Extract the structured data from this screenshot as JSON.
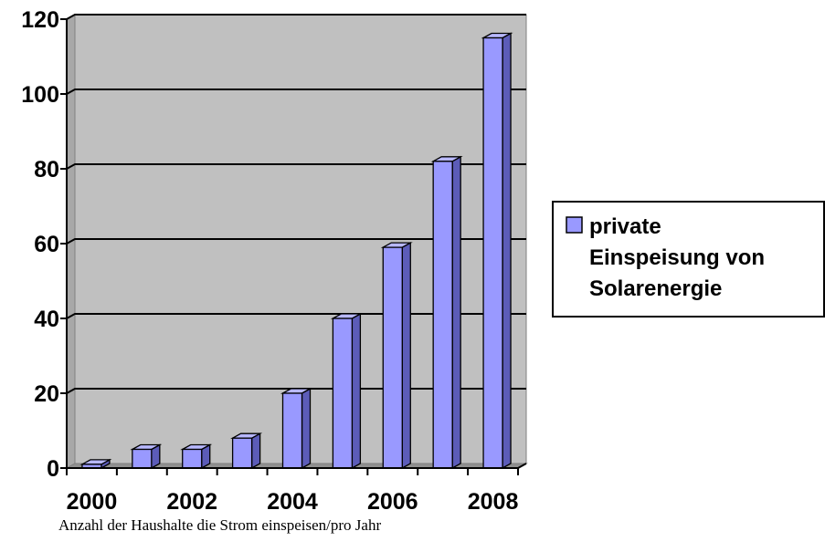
{
  "chart_data": {
    "type": "bar",
    "categories": [
      "2000",
      "2001",
      "2002",
      "2003",
      "2004",
      "2005",
      "2006",
      "2007",
      "2008"
    ],
    "x_tick_labels": [
      "2000",
      "2002",
      "2004",
      "2006",
      "2008"
    ],
    "series": [
      {
        "name": "private Einspeisung von Solarenergie",
        "values": [
          1,
          5,
          5,
          8,
          20,
          40,
          59,
          82,
          115
        ],
        "color": "#9999ff"
      }
    ],
    "ylim": [
      0,
      120
    ],
    "y_ticks": [
      0,
      20,
      40,
      60,
      80,
      100,
      120
    ],
    "grid": true,
    "three_d": true,
    "legend_position": "right",
    "legend_lines": [
      "private",
      "Einspeisung von",
      "Solarenergie"
    ],
    "wall_color": "#c0c0c0",
    "caption": "Anzahl der Haushalte die Strom einspeisen/pro Jahr"
  }
}
